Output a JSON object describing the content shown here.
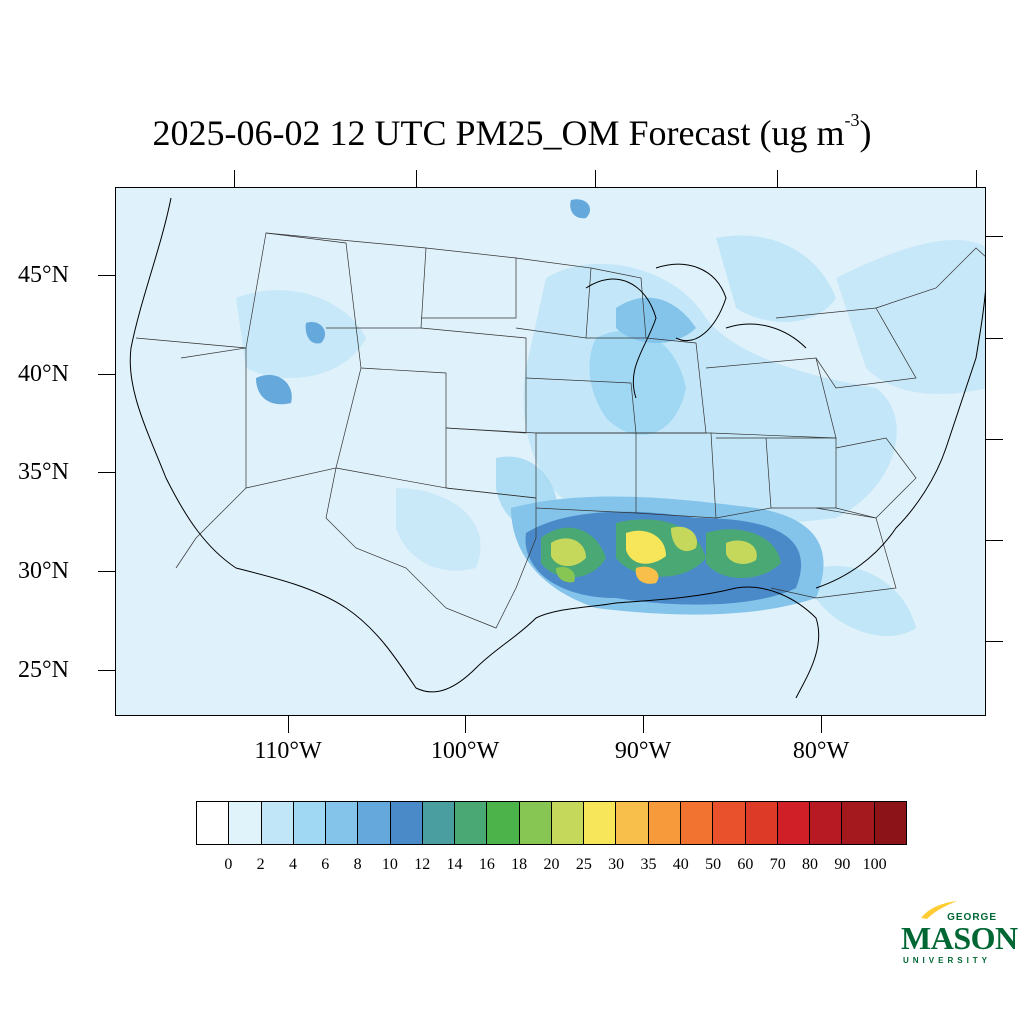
{
  "title": {
    "main": "2025-06-02 12 UTC PM25_OM Forecast (ug m",
    "exponent": "-3",
    "close": ")"
  },
  "lat_labels": [
    "45°N",
    "40°N",
    "35°N",
    "30°N",
    "25°N"
  ],
  "lon_labels": [
    "110°W",
    "100°W",
    "90°W",
    "80°W"
  ],
  "colorbar": {
    "labels": [
      "0",
      "2",
      "4",
      "6",
      "8",
      "10",
      "12",
      "14",
      "16",
      "18",
      "20",
      "25",
      "30",
      "35",
      "40",
      "50",
      "60",
      "70",
      "80",
      "90",
      "100"
    ],
    "colors": [
      "#ffffff",
      "#e0f3fb",
      "#c0e6f7",
      "#a0d8f3",
      "#84c4eb",
      "#65a9dc",
      "#4a8ac9",
      "#4a9ea0",
      "#4aa874",
      "#4cb34a",
      "#88c653",
      "#c6d85b",
      "#f7e65a",
      "#f8c04a",
      "#f79a3c",
      "#f2722f",
      "#e8512c",
      "#de3a28",
      "#d01f26",
      "#b81a24",
      "#a3191e",
      "#8c1418"
    ]
  },
  "logo": {
    "george": "GEORGE",
    "mason": "MASON",
    "university": "UNIVERSITY",
    "colors": {
      "green": "#006633",
      "gold": "#ffcc33"
    }
  }
}
